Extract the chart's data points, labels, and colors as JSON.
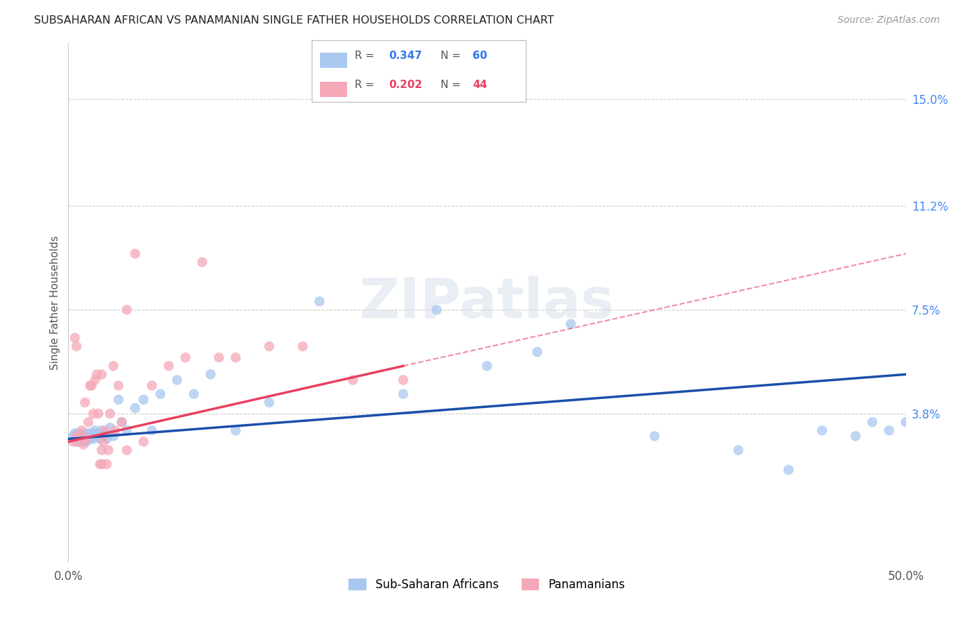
{
  "title": "SUBSAHARAN AFRICAN VS PANAMANIAN SINGLE FATHER HOUSEHOLDS CORRELATION CHART",
  "source": "Source: ZipAtlas.com",
  "ylabel": "Single Father Households",
  "ytick_values": [
    3.8,
    7.5,
    11.2,
    15.0
  ],
  "ytick_labels": [
    "3.8%",
    "7.5%",
    "11.2%",
    "15.0%"
  ],
  "xlim": [
    0.0,
    50.0
  ],
  "ylim": [
    -1.5,
    17.0
  ],
  "blue_color": "#a8c8f0",
  "pink_color": "#f5a8b8",
  "blue_line_color": "#1a4faa",
  "pink_line_color": "#e84060",
  "background_color": "#ffffff",
  "watermark": "ZIPatlas",
  "blue_r": "0.347",
  "blue_n": "60",
  "pink_r": "0.202",
  "pink_n": "44",
  "blue_scatter_x": [
    0.3,
    0.4,
    0.4,
    0.5,
    0.5,
    0.6,
    0.6,
    0.7,
    0.7,
    0.8,
    0.8,
    0.9,
    0.9,
    1.0,
    1.0,
    1.1,
    1.1,
    1.2,
    1.2,
    1.3,
    1.3,
    1.4,
    1.5,
    1.5,
    1.6,
    1.7,
    1.8,
    1.9,
    2.0,
    2.1,
    2.2,
    2.3,
    2.5,
    2.7,
    3.0,
    3.2,
    3.5,
    4.0,
    4.5,
    5.0,
    5.5,
    6.5,
    7.5,
    8.5,
    10.0,
    12.0,
    15.0,
    20.0,
    22.0,
    25.0,
    28.0,
    30.0,
    35.0,
    40.0,
    43.0,
    45.0,
    47.0,
    48.0,
    49.0,
    50.0
  ],
  "blue_scatter_y": [
    3.0,
    2.9,
    3.1,
    3.0,
    2.8,
    3.1,
    2.9,
    3.0,
    2.8,
    3.1,
    2.9,
    3.0,
    2.8,
    3.0,
    2.9,
    3.1,
    2.8,
    3.0,
    2.9,
    3.1,
    2.9,
    3.0,
    3.1,
    2.9,
    3.2,
    3.0,
    3.1,
    2.9,
    3.2,
    3.0,
    3.1,
    2.9,
    3.3,
    3.0,
    4.3,
    3.5,
    3.2,
    4.0,
    4.3,
    3.2,
    4.5,
    5.0,
    4.5,
    5.2,
    3.2,
    4.2,
    7.8,
    4.5,
    7.5,
    5.5,
    6.0,
    7.0,
    3.0,
    2.5,
    1.8,
    3.2,
    3.0,
    3.5,
    3.2,
    3.5
  ],
  "pink_scatter_x": [
    0.3,
    0.4,
    0.5,
    0.5,
    0.6,
    0.7,
    0.8,
    0.9,
    1.0,
    1.1,
    1.2,
    1.3,
    1.4,
    1.5,
    1.6,
    1.7,
    1.8,
    1.9,
    2.0,
    2.1,
    2.2,
    2.3,
    2.4,
    2.5,
    2.7,
    2.8,
    3.0,
    3.2,
    3.5,
    4.0,
    4.5,
    5.0,
    6.0,
    7.0,
    8.0,
    9.0,
    10.0,
    12.0,
    14.0,
    17.0,
    20.0,
    3.5,
    2.0,
    2.0
  ],
  "pink_scatter_y": [
    2.8,
    6.5,
    6.2,
    3.0,
    2.8,
    3.0,
    3.2,
    2.7,
    4.2,
    2.9,
    3.5,
    4.8,
    4.8,
    3.8,
    5.0,
    5.2,
    3.8,
    2.0,
    5.2,
    2.8,
    3.2,
    2.0,
    2.5,
    3.8,
    5.5,
    3.2,
    4.8,
    3.5,
    7.5,
    9.5,
    2.8,
    4.8,
    5.5,
    5.8,
    9.2,
    5.8,
    5.8,
    6.2,
    6.2,
    5.0,
    5.0,
    2.5,
    2.5,
    2.0
  ],
  "blue_line_x0": 0.0,
  "blue_line_x1": 50.0,
  "blue_line_y0": 2.9,
  "blue_line_y1": 5.2,
  "pink_line_x0": 0.0,
  "pink_line_x1": 20.0,
  "pink_line_y0": 2.8,
  "pink_line_y1": 5.5,
  "pink_dash_x0": 20.0,
  "pink_dash_x1": 50.0,
  "pink_dash_y0": 5.5,
  "pink_dash_y1": 9.5
}
